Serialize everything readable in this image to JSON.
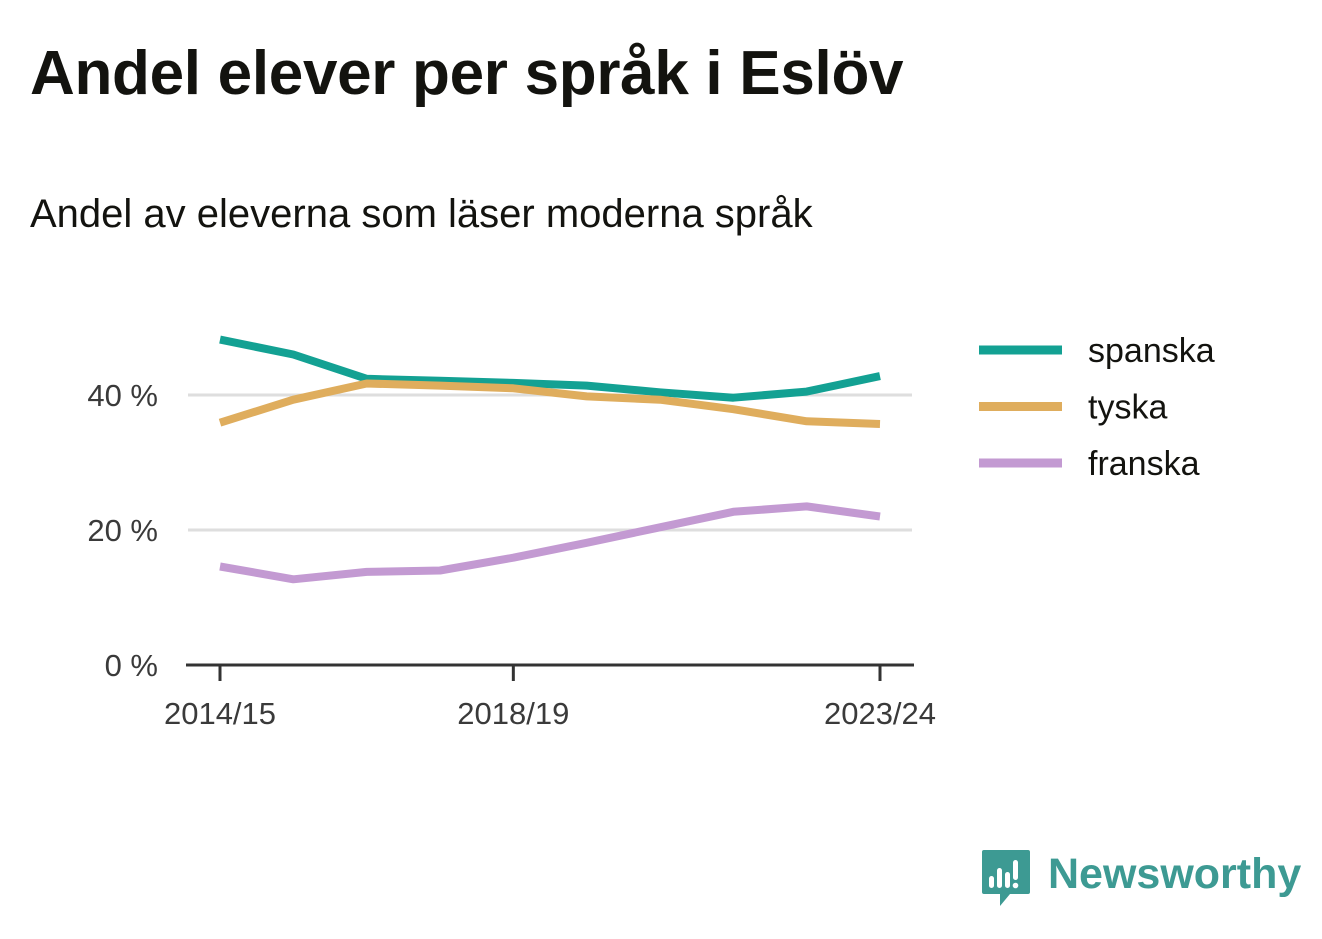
{
  "title": "Andel elever per språk i Eslöv",
  "subtitle": "Andel av eleverna som läser moderna språk",
  "brand": {
    "name": "Newsworthy",
    "icon": "newsworthy-logo-icon",
    "color": "#3d9a93"
  },
  "chart_data": {
    "type": "line",
    "title": "Andel elever per språk i Eslöv",
    "subtitle": "Andel av eleverna som läser moderna språk",
    "x": [
      "2014/15",
      "2015/16",
      "2016/17",
      "2017/18",
      "2018/19",
      "2019/20",
      "2020/21",
      "2021/22",
      "2022/23",
      "2023/24"
    ],
    "x_tick_labels": [
      "2014/15",
      "2018/19",
      "2023/24"
    ],
    "y_ticks": [
      0,
      20,
      40
    ],
    "y_tick_labels": [
      "0 %",
      "20 %",
      "40 %"
    ],
    "ylim": [
      0,
      50
    ],
    "grid": true,
    "legend_position": "right",
    "series": [
      {
        "name": "spanska",
        "color": "#13a193",
        "values": [
          48.2,
          46.0,
          42.4,
          42.1,
          41.8,
          41.4,
          40.4,
          39.6,
          40.5,
          42.8
        ]
      },
      {
        "name": "tyska",
        "color": "#dfad5d",
        "values": [
          35.9,
          39.3,
          41.7,
          41.4,
          41.0,
          39.8,
          39.3,
          37.9,
          36.1,
          35.7
        ]
      },
      {
        "name": "franska",
        "color": "#c39ad2",
        "values": [
          14.6,
          12.7,
          13.8,
          14.0,
          15.9,
          18.1,
          20.4,
          22.7,
          23.5,
          22.0
        ]
      }
    ]
  }
}
